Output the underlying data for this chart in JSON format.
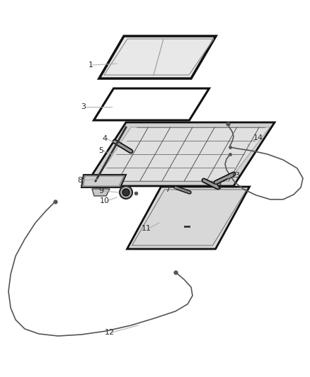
{
  "bg_color": "#ffffff",
  "dk": "#1a1a1a",
  "md": "#666666",
  "lt": "#cccccc",
  "ltr": "#e8e8e8",
  "lc": "#aaaaaa",
  "figsize": [
    4.38,
    5.33
  ],
  "dpi": 100
}
